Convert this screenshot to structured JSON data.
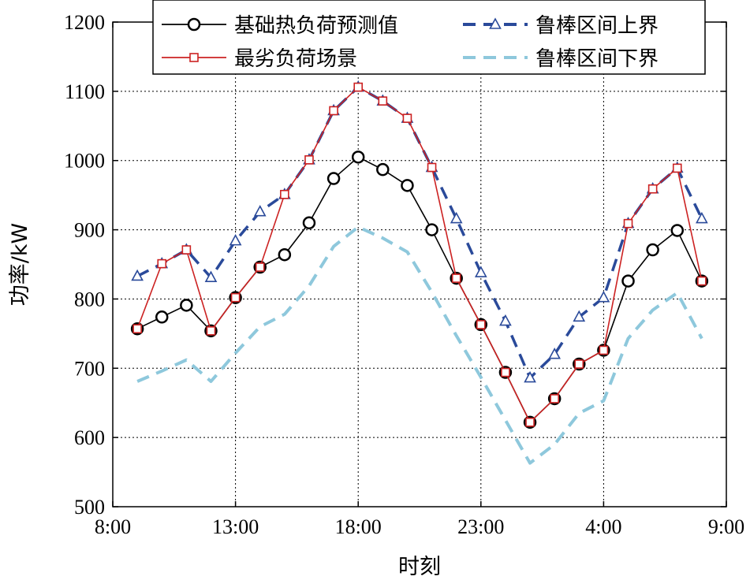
{
  "chart_data": {
    "type": "line",
    "title": "",
    "xlabel": "时刻",
    "ylabel": "功率/kW",
    "x_tick_labels": [
      "8:00",
      "13:00",
      "18:00",
      "23:00",
      "4:00",
      "9:00"
    ],
    "x_tick_positions": [
      0,
      5,
      10,
      15,
      20,
      25
    ],
    "xlim": [
      0,
      25
    ],
    "ylim": [
      500,
      1200
    ],
    "y_ticks": [
      500,
      600,
      700,
      800,
      900,
      1000,
      1100,
      1200
    ],
    "x": [
      1,
      2,
      3,
      4,
      5,
      6,
      7,
      8,
      9,
      10,
      11,
      12,
      13,
      14,
      15,
      16,
      17,
      18,
      19,
      20,
      21,
      22,
      23,
      24
    ],
    "grid": true,
    "legend_position": "top-right",
    "series": [
      {
        "name": "基础热负荷预测值",
        "color": "#000000",
        "marker": "circle",
        "line_style": "solid",
        "values": [
          757,
          774,
          791,
          754,
          802,
          846,
          864,
          910,
          974,
          1005,
          987,
          964,
          900,
          830,
          763,
          694,
          622,
          656,
          706,
          726,
          826,
          871,
          899,
          826
        ]
      },
      {
        "name": "最劣负荷场景",
        "color": "#cc2222",
        "marker": "square",
        "line_style": "solid",
        "values": [
          757,
          851,
          871,
          754,
          802,
          846,
          951,
          1001,
          1072,
          1106,
          1086,
          1061,
          990,
          830,
          763,
          694,
          622,
          656,
          706,
          726,
          909,
          959,
          989,
          826
        ]
      },
      {
        "name": "鲁棒区间上界",
        "color": "#2a4a9a",
        "marker": "triangle",
        "line_style": "dashed",
        "values": [
          833,
          851,
          871,
          831,
          884,
          926,
          951,
          1001,
          1072,
          1106,
          1086,
          1061,
          990,
          916,
          838,
          768,
          686,
          720,
          774,
          802,
          909,
          959,
          989,
          916
        ]
      },
      {
        "name": "鲁棒区间下界",
        "color": "#8ec8dc",
        "marker": "none",
        "line_style": "dashed",
        "values": [
          681,
          696,
          712,
          681,
          722,
          760,
          778,
          819,
          876,
          904,
          888,
          868,
          810,
          747,
          687,
          625,
          563,
          590,
          635,
          653,
          743,
          784,
          809,
          743
        ]
      }
    ]
  }
}
